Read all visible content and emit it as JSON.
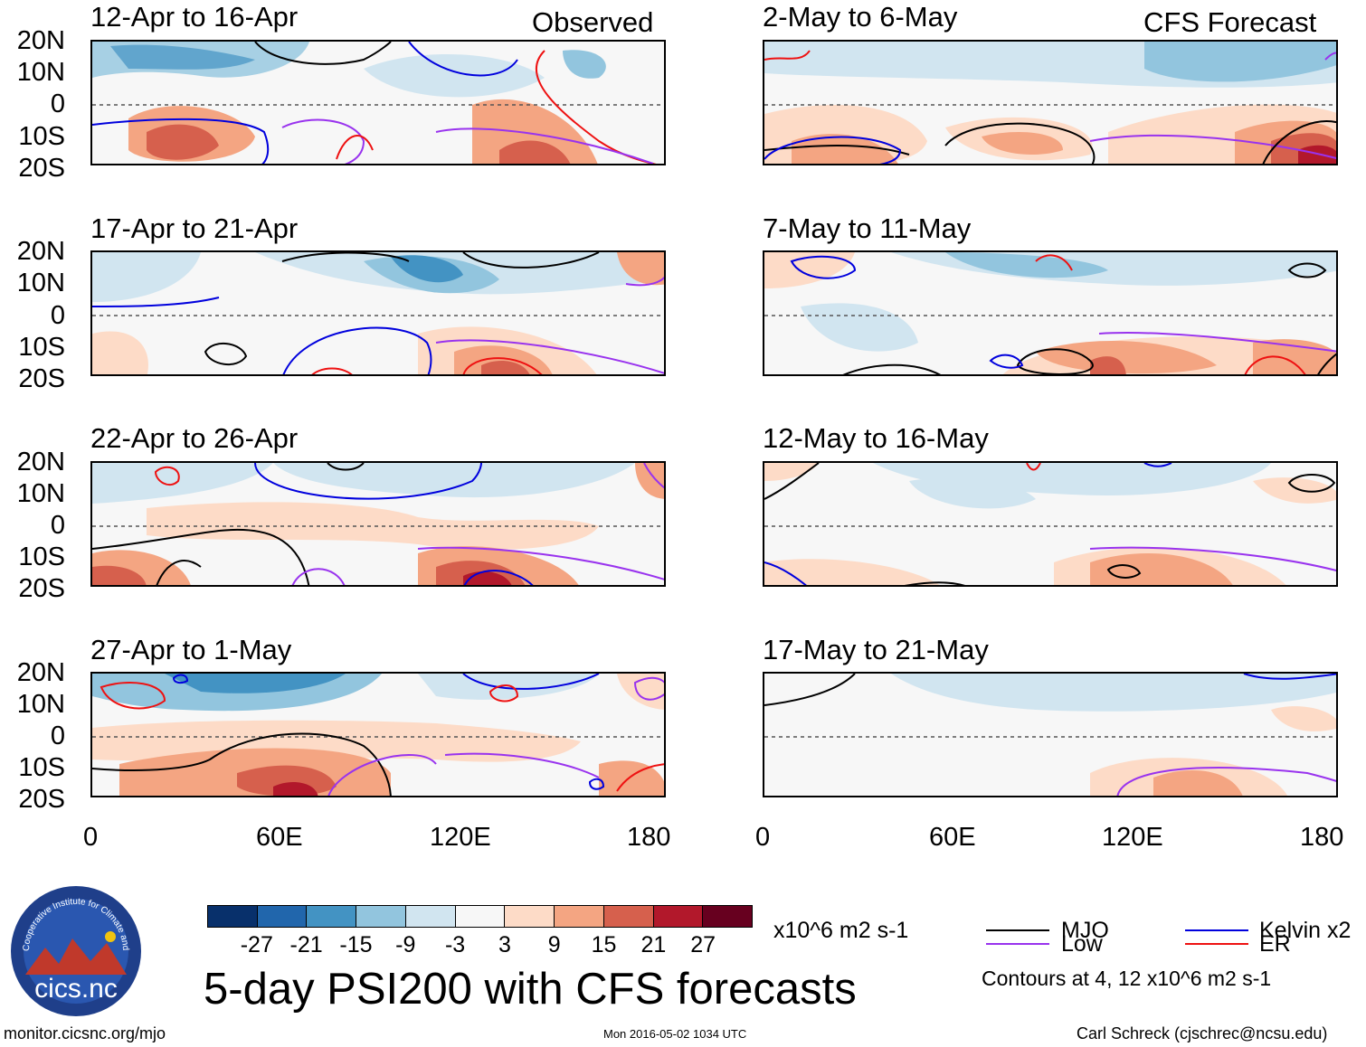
{
  "header": {
    "observed_label": "Observed",
    "forecast_label": "CFS Forecast"
  },
  "panels": {
    "observed": [
      {
        "title": "12-Apr to 16-Apr"
      },
      {
        "title": "17-Apr to 21-Apr"
      },
      {
        "title": "22-Apr to 26-Apr"
      },
      {
        "title": "27-Apr to 1-May"
      }
    ],
    "forecast": [
      {
        "title": "2-May to 6-May"
      },
      {
        "title": "7-May to 11-May"
      },
      {
        "title": "12-May to 16-May"
      },
      {
        "title": "17-May to 21-May"
      }
    ]
  },
  "axes": {
    "lat_labels": [
      "20N",
      "10N",
      "0",
      "10S",
      "20S"
    ],
    "lon_labels": [
      "0",
      "60E",
      "120E",
      "180"
    ]
  },
  "colorbar": {
    "ticks": [
      "-27",
      "-21",
      "-15",
      "-9",
      "-3",
      "3",
      "9",
      "15",
      "21",
      "27"
    ],
    "units": "x10^6 m2 s-1",
    "colors": [
      "#08306b",
      "#2166ac",
      "#4393c3",
      "#92c5de",
      "#d1e5f0",
      "#f7f7f7",
      "#fddbc7",
      "#f4a582",
      "#d6604d",
      "#b2182b",
      "#67001f"
    ]
  },
  "legend": {
    "items": [
      {
        "label": "MJO",
        "color": "#000000"
      },
      {
        "label": "Kelvin x2",
        "color": "#0000dd"
      },
      {
        "label": "Low",
        "color": "#9933ee"
      },
      {
        "label": "ER",
        "color": "#ee1111"
      }
    ],
    "contours_note": "Contours at 4, 12 x10^6 m2 s-1"
  },
  "main_title": "5-day PSI200 with CFS forecasts",
  "logo": {
    "text": "cics.nc",
    "ring_text": "Cooperative Institute for Climate and Satellites"
  },
  "footer": {
    "url": "monitor.cicsnc.org/mjo",
    "timestamp": "Mon 2016-05-02 1034 UTC",
    "author": "Carl Schreck (cjschrec@ncsu.edu)"
  }
}
